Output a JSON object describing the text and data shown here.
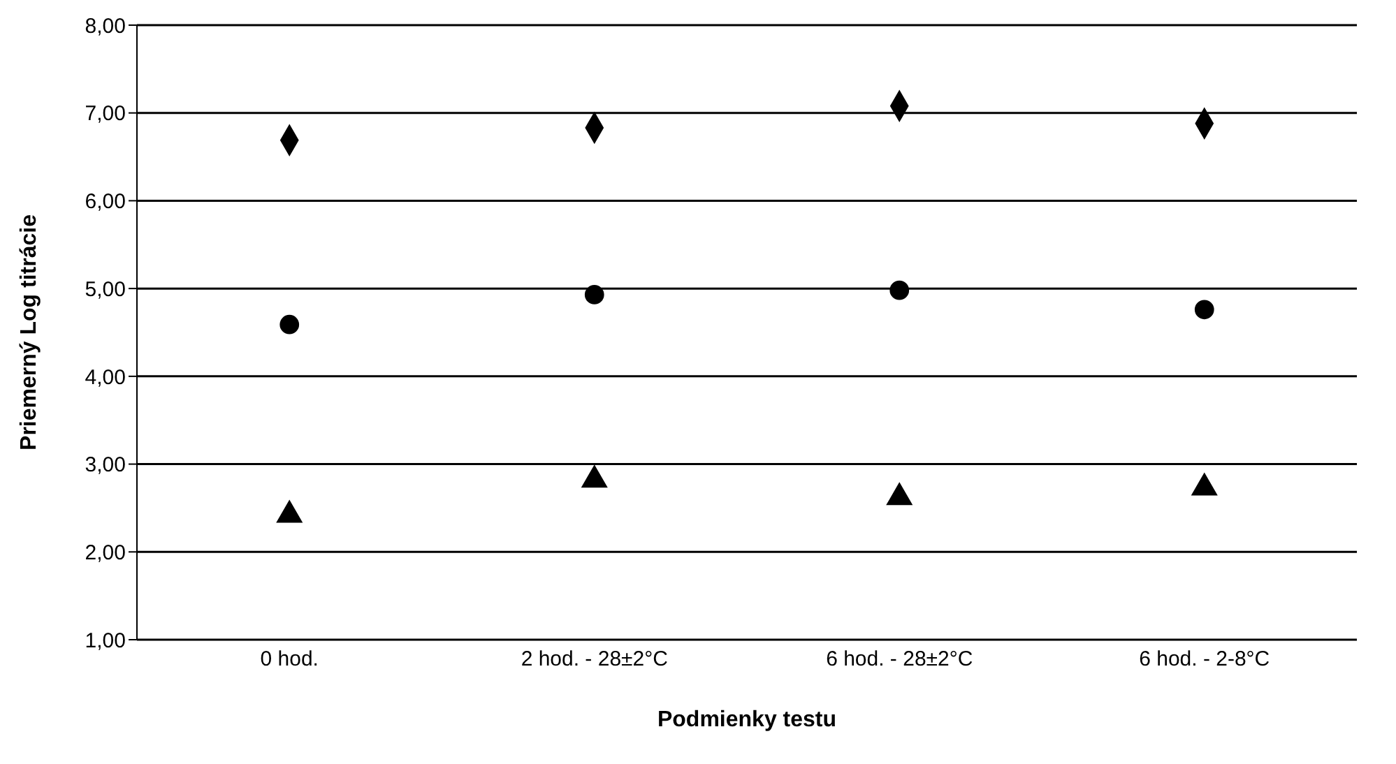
{
  "chart_data": {
    "type": "scatter",
    "xlabel": "Podmienky testu",
    "ylabel": "Priemerný Log titrácie",
    "categories": [
      "0 hod.",
      "2 hod. - 28±2°C",
      "6 hod. - 28±2°C",
      "6 hod. - 2-8°C"
    ],
    "series": [
      {
        "color": "#000000",
        "marker": "diamond",
        "values": [
          6.69,
          6.83,
          7.08,
          6.88
        ]
      },
      {
        "color": "#000000",
        "marker": "circle",
        "values": [
          4.59,
          4.93,
          4.98,
          4.76
        ]
      },
      {
        "color": "#000000",
        "marker": "triangle",
        "values": [
          2.42,
          2.82,
          2.62,
          2.73
        ]
      }
    ],
    "ylim": [
      1,
      8
    ],
    "yticks": [
      {
        "value": 1,
        "label": "1,00"
      },
      {
        "value": 2,
        "label": "2,00"
      },
      {
        "value": 3,
        "label": "3,00"
      },
      {
        "value": 4,
        "label": "4,00"
      },
      {
        "value": 5,
        "label": "5,00"
      },
      {
        "value": 6,
        "label": "6,00"
      },
      {
        "value": 7,
        "label": "7,00"
      },
      {
        "value": 8,
        "label": "8,00"
      }
    ],
    "grid": "y",
    "legend": false
  }
}
